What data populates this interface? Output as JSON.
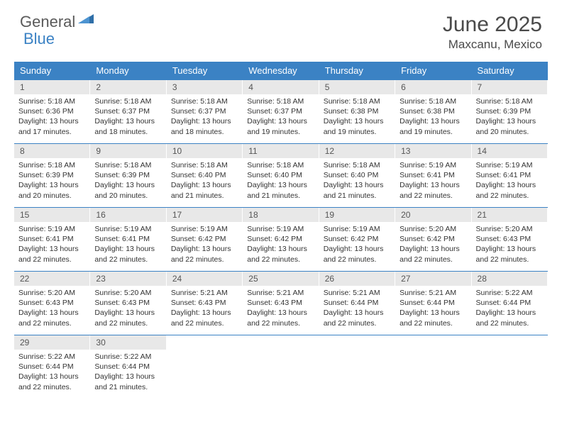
{
  "logo": {
    "text1": "General",
    "text2": "Blue"
  },
  "title": "June 2025",
  "location": "Maxcanu, Mexico",
  "colors": {
    "header_bg": "#3b82c4",
    "header_text": "#ffffff",
    "daynum_bg": "#e8e8e8",
    "row_border": "#3b82c4",
    "body_text": "#333333",
    "title_text": "#4a4a4a"
  },
  "typography": {
    "title_fontsize": 30,
    "location_fontsize": 17,
    "weekday_fontsize": 13,
    "content_fontsize": 10.5
  },
  "weekdays": [
    "Sunday",
    "Monday",
    "Tuesday",
    "Wednesday",
    "Thursday",
    "Friday",
    "Saturday"
  ],
  "weeks": [
    [
      {
        "n": "1",
        "sr": "5:18 AM",
        "ss": "6:36 PM",
        "dl": "13 hours and 17 minutes."
      },
      {
        "n": "2",
        "sr": "5:18 AM",
        "ss": "6:37 PM",
        "dl": "13 hours and 18 minutes."
      },
      {
        "n": "3",
        "sr": "5:18 AM",
        "ss": "6:37 PM",
        "dl": "13 hours and 18 minutes."
      },
      {
        "n": "4",
        "sr": "5:18 AM",
        "ss": "6:37 PM",
        "dl": "13 hours and 19 minutes."
      },
      {
        "n": "5",
        "sr": "5:18 AM",
        "ss": "6:38 PM",
        "dl": "13 hours and 19 minutes."
      },
      {
        "n": "6",
        "sr": "5:18 AM",
        "ss": "6:38 PM",
        "dl": "13 hours and 19 minutes."
      },
      {
        "n": "7",
        "sr": "5:18 AM",
        "ss": "6:39 PM",
        "dl": "13 hours and 20 minutes."
      }
    ],
    [
      {
        "n": "8",
        "sr": "5:18 AM",
        "ss": "6:39 PM",
        "dl": "13 hours and 20 minutes."
      },
      {
        "n": "9",
        "sr": "5:18 AM",
        "ss": "6:39 PM",
        "dl": "13 hours and 20 minutes."
      },
      {
        "n": "10",
        "sr": "5:18 AM",
        "ss": "6:40 PM",
        "dl": "13 hours and 21 minutes."
      },
      {
        "n": "11",
        "sr": "5:18 AM",
        "ss": "6:40 PM",
        "dl": "13 hours and 21 minutes."
      },
      {
        "n": "12",
        "sr": "5:18 AM",
        "ss": "6:40 PM",
        "dl": "13 hours and 21 minutes."
      },
      {
        "n": "13",
        "sr": "5:19 AM",
        "ss": "6:41 PM",
        "dl": "13 hours and 22 minutes."
      },
      {
        "n": "14",
        "sr": "5:19 AM",
        "ss": "6:41 PM",
        "dl": "13 hours and 22 minutes."
      }
    ],
    [
      {
        "n": "15",
        "sr": "5:19 AM",
        "ss": "6:41 PM",
        "dl": "13 hours and 22 minutes."
      },
      {
        "n": "16",
        "sr": "5:19 AM",
        "ss": "6:41 PM",
        "dl": "13 hours and 22 minutes."
      },
      {
        "n": "17",
        "sr": "5:19 AM",
        "ss": "6:42 PM",
        "dl": "13 hours and 22 minutes."
      },
      {
        "n": "18",
        "sr": "5:19 AM",
        "ss": "6:42 PM",
        "dl": "13 hours and 22 minutes."
      },
      {
        "n": "19",
        "sr": "5:19 AM",
        "ss": "6:42 PM",
        "dl": "13 hours and 22 minutes."
      },
      {
        "n": "20",
        "sr": "5:20 AM",
        "ss": "6:42 PM",
        "dl": "13 hours and 22 minutes."
      },
      {
        "n": "21",
        "sr": "5:20 AM",
        "ss": "6:43 PM",
        "dl": "13 hours and 22 minutes."
      }
    ],
    [
      {
        "n": "22",
        "sr": "5:20 AM",
        "ss": "6:43 PM",
        "dl": "13 hours and 22 minutes."
      },
      {
        "n": "23",
        "sr": "5:20 AM",
        "ss": "6:43 PM",
        "dl": "13 hours and 22 minutes."
      },
      {
        "n": "24",
        "sr": "5:21 AM",
        "ss": "6:43 PM",
        "dl": "13 hours and 22 minutes."
      },
      {
        "n": "25",
        "sr": "5:21 AM",
        "ss": "6:43 PM",
        "dl": "13 hours and 22 minutes."
      },
      {
        "n": "26",
        "sr": "5:21 AM",
        "ss": "6:44 PM",
        "dl": "13 hours and 22 minutes."
      },
      {
        "n": "27",
        "sr": "5:21 AM",
        "ss": "6:44 PM",
        "dl": "13 hours and 22 minutes."
      },
      {
        "n": "28",
        "sr": "5:22 AM",
        "ss": "6:44 PM",
        "dl": "13 hours and 22 minutes."
      }
    ],
    [
      {
        "n": "29",
        "sr": "5:22 AM",
        "ss": "6:44 PM",
        "dl": "13 hours and 22 minutes."
      },
      {
        "n": "30",
        "sr": "5:22 AM",
        "ss": "6:44 PM",
        "dl": "13 hours and 21 minutes."
      },
      null,
      null,
      null,
      null,
      null
    ]
  ],
  "labels": {
    "sunrise": "Sunrise:",
    "sunset": "Sunset:",
    "daylight": "Daylight:"
  }
}
